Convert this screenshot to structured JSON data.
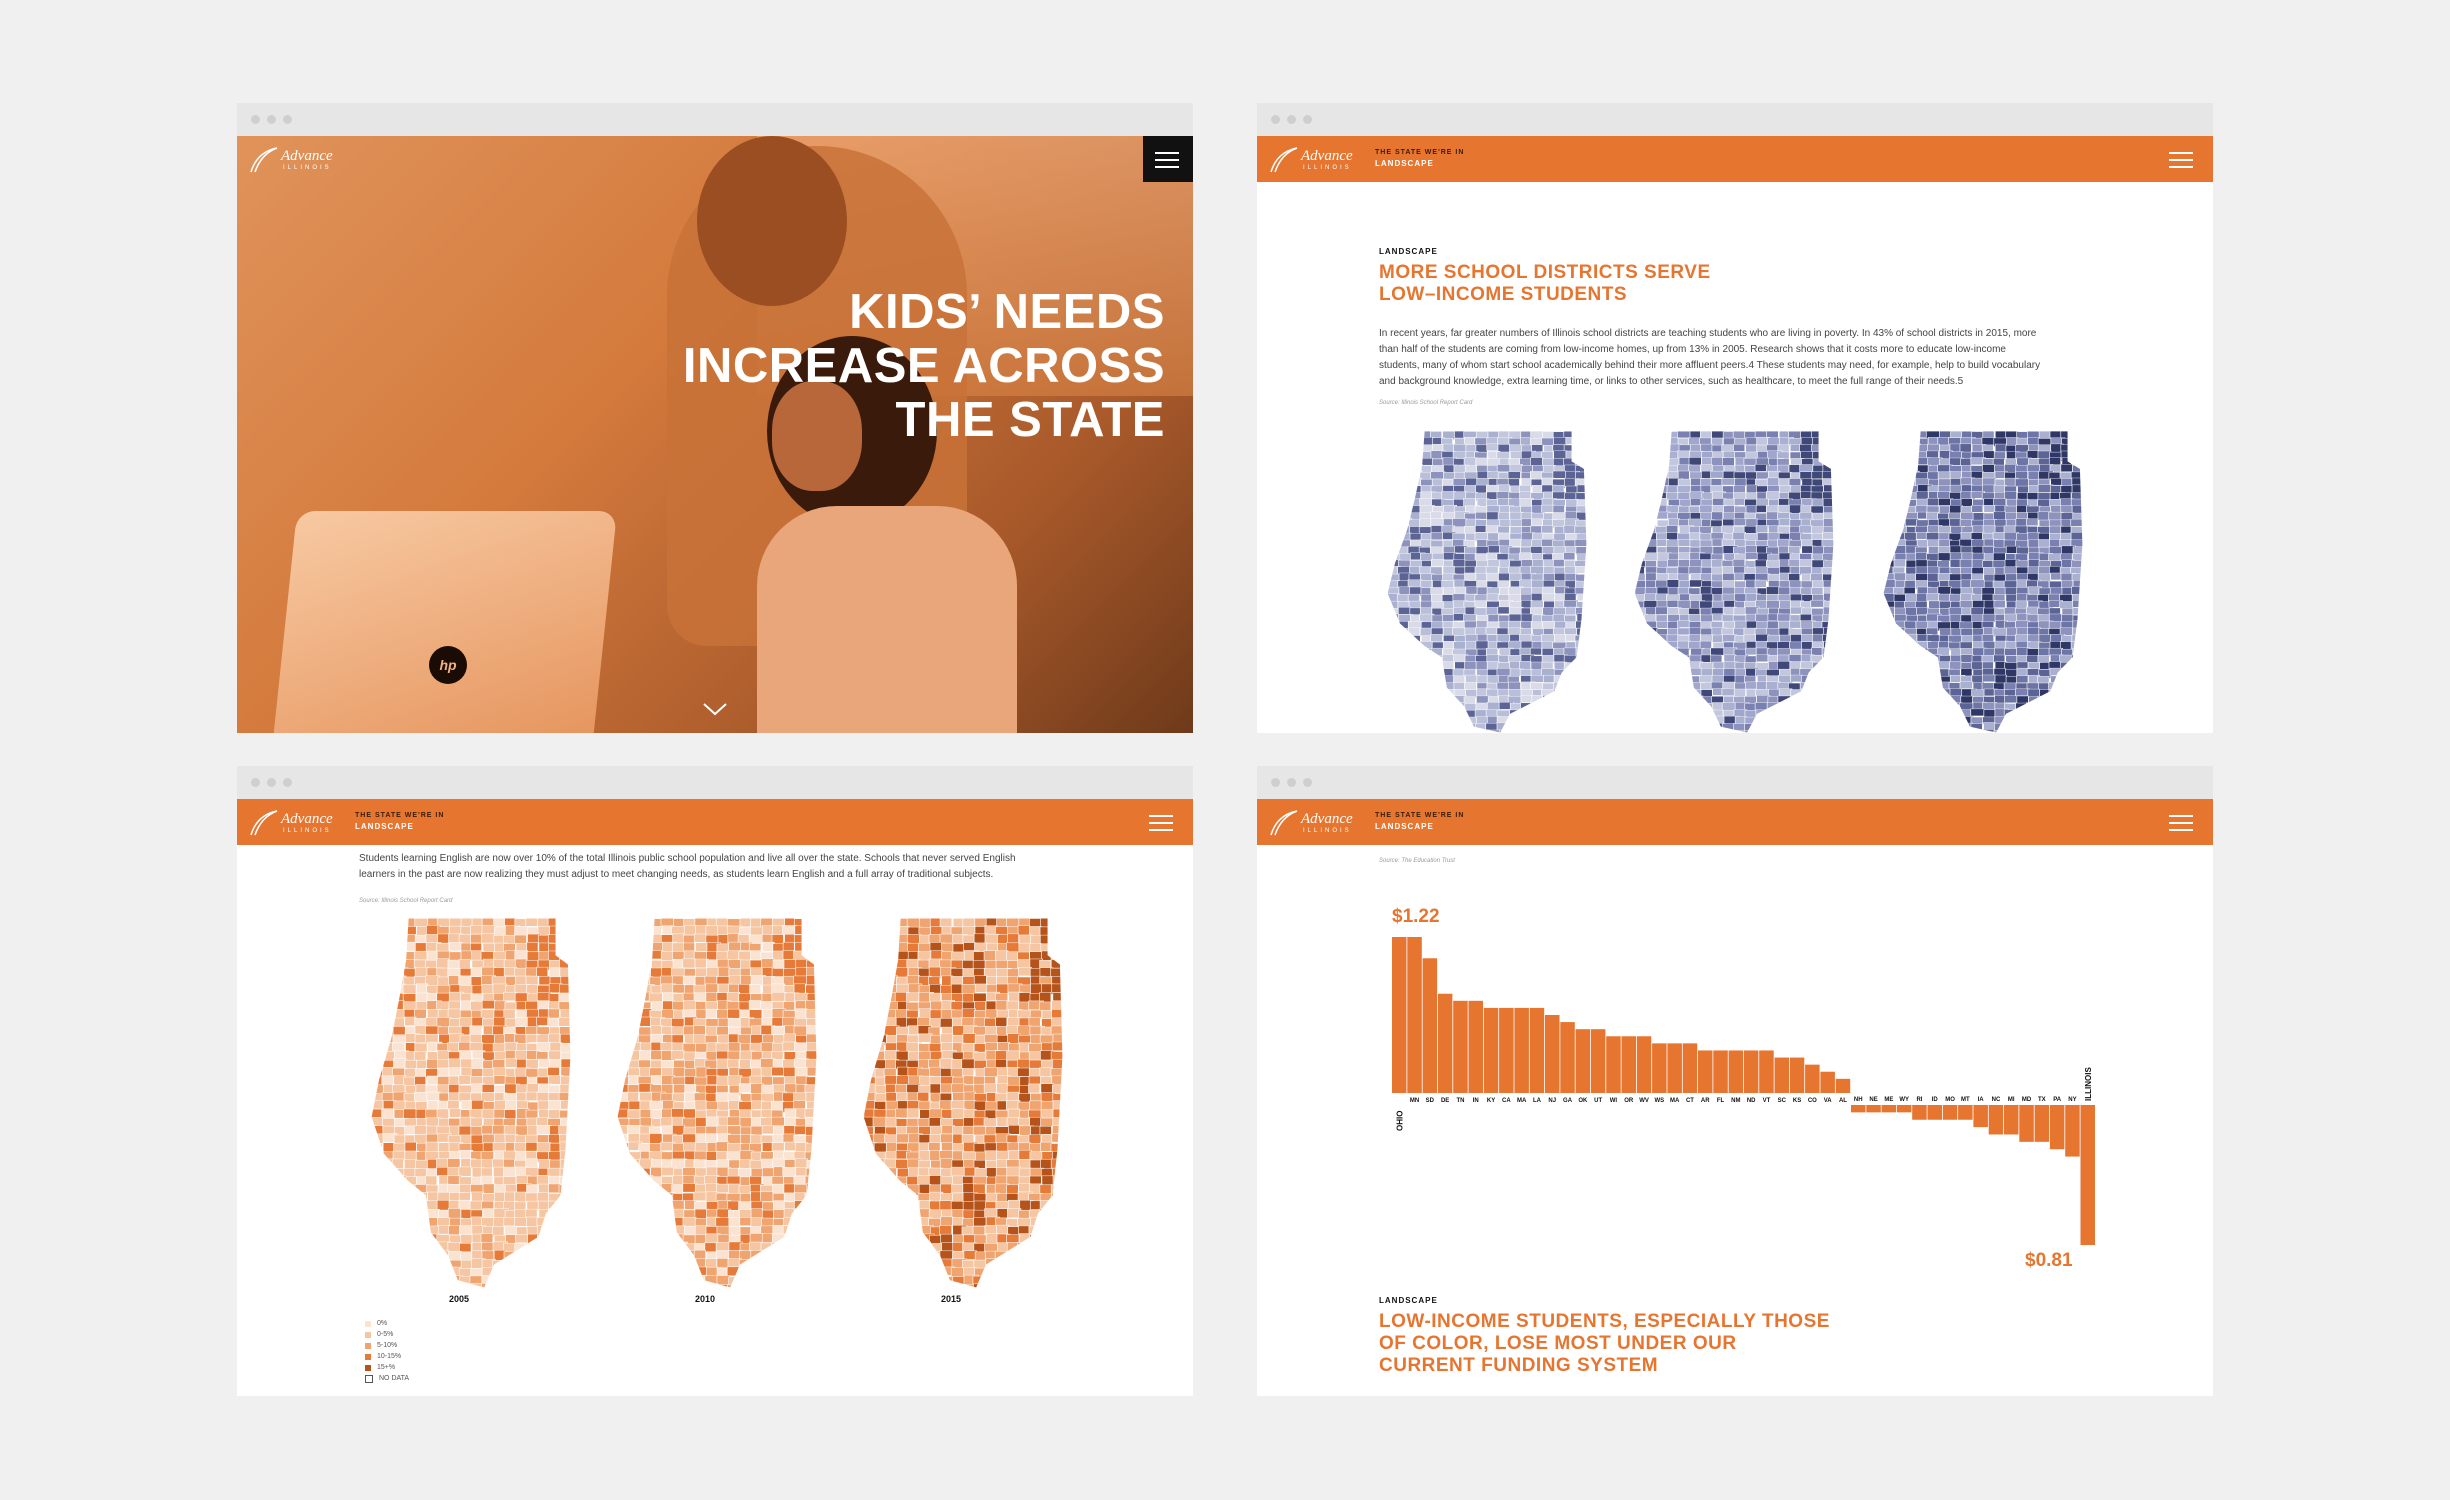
{
  "colors": {
    "accent": "#e67530",
    "background": "#f0f0f0",
    "navy_map": "#5b6494",
    "peach_map": "#f2b489"
  },
  "brand": {
    "logo_line1": "Advance",
    "logo_line2": "ILLINOIS"
  },
  "nav": {
    "section_kicker": "THE STATE WE'RE IN",
    "section_name": "LANDSCAPE",
    "menu_icon": "hamburger-icon"
  },
  "window1": {
    "hero_line1": "KIDS’ NEEDS",
    "hero_line2": "INCREASE ACROSS",
    "hero_line3": "THE STATE",
    "laptop_logo": "hp",
    "scroll_icon": "chevron-down-icon"
  },
  "window2": {
    "kicker": "LANDSCAPE",
    "headline_line1": "MORE SCHOOL DISTRICTS SERVE",
    "headline_line2": "LOW–INCOME STUDENTS",
    "para_line1": "In recent years, far greater numbers of Illinois school districts are teaching students who are living in poverty. In 43% of school districts in 2015, more",
    "para_line2": "than half of the students are coming from low-income homes, up from 13% in 2005. Research shows that it costs more to educate low-income",
    "para_line3": "students, many of whom start school academically behind their more affluent peers.4 These students may need, for example, help to build vocabulary",
    "para_line4": "and background knowledge, extra learning time, or links to other services, such as healthcare, to meet the full range of their needs.5",
    "source": "Source: Illinois School Report Card"
  },
  "window3": {
    "para_line1": "Students learning English are now over 10% of the total Illinois public school population and live all over the state. Schools that never served English",
    "para_line2": "learners in the past are now realizing they must adjust to meet changing needs, as students learn English and a full array of traditional subjects.",
    "source": "Source: Illinois School Report Card",
    "map_years": [
      "2005",
      "2010",
      "2015"
    ],
    "legend": [
      {
        "label": "0%",
        "color": "#fbe3d2"
      },
      {
        "label": "0-5%",
        "color": "#f6c6a3"
      },
      {
        "label": "5-10%",
        "color": "#f0a470"
      },
      {
        "label": "10-15%",
        "color": "#e67a38"
      },
      {
        "label": "15+%",
        "color": "#b5531a"
      },
      {
        "label": "NO DATA",
        "color": "#ffffff"
      }
    ]
  },
  "window4": {
    "source": "Source: The Education Trust",
    "top_value": "$1.22",
    "bottom_value": "$0.81",
    "kicker": "LANDSCAPE",
    "headline_line1": "LOW-INCOME STUDENTS, ESPECIALLY THOSE",
    "headline_line2": "OF COLOR, LOSE MOST UNDER OUR",
    "headline_line3": "CURRENT FUNDING SYSTEM"
  },
  "chart_data": {
    "type": "bar",
    "categories": [
      "OHIO",
      "MN",
      "SD",
      "DE",
      "TN",
      "IN",
      "KY",
      "CA",
      "MA",
      "LA",
      "NJ",
      "GA",
      "OK",
      "UT",
      "WI",
      "OR",
      "WV",
      "WS",
      "MA",
      "CT",
      "AR",
      "FL",
      "NM",
      "ND",
      "VT",
      "SC",
      "KS",
      "CO",
      "VA",
      "AL",
      "NH",
      "NE",
      "ME",
      "WY",
      "RI",
      "ID",
      "MO",
      "MT",
      "IA",
      "NC",
      "MI",
      "MD",
      "TX",
      "PA",
      "NY",
      "ILLINOIS"
    ],
    "values": [
      1.22,
      1.22,
      1.19,
      1.14,
      1.13,
      1.13,
      1.12,
      1.12,
      1.12,
      1.12,
      1.11,
      1.1,
      1.09,
      1.09,
      1.08,
      1.08,
      1.08,
      1.07,
      1.07,
      1.07,
      1.06,
      1.06,
      1.06,
      1.06,
      1.06,
      1.05,
      1.05,
      1.04,
      1.03,
      1.02,
      0.99,
      0.99,
      0.99,
      0.99,
      0.98,
      0.98,
      0.98,
      0.98,
      0.97,
      0.96,
      0.96,
      0.95,
      0.95,
      0.94,
      0.93,
      0.81
    ],
    "baseline": 1.0,
    "ylim": [
      0.81,
      1.22
    ],
    "annotations": [
      "$1.22",
      "$0.81"
    ]
  }
}
